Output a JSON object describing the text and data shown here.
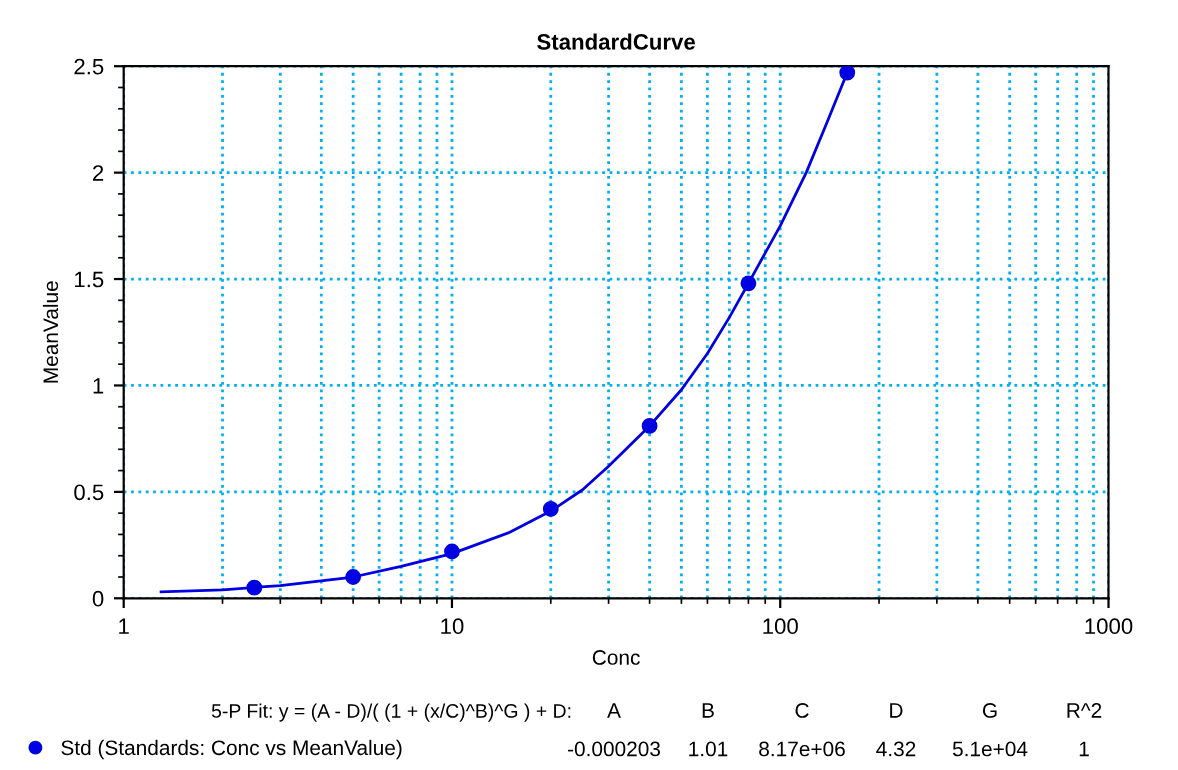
{
  "chart_data": {
    "type": "scatter",
    "title": "StandardCurve",
    "xlabel": "Conc",
    "ylabel": "MeanValue",
    "log": "x",
    "xlim": [
      1,
      1000
    ],
    "xticks": [
      1,
      10,
      100,
      1000
    ],
    "ylim": [
      0,
      2.5
    ],
    "yticks": [
      0,
      0.5,
      1,
      1.5,
      2,
      2.5
    ],
    "grid": true,
    "legend": "bottom",
    "series": [
      {
        "name": "Std (Standards: Conc vs MeanValue)",
        "type": "scatter",
        "color": "#0000e0",
        "marker": "circle",
        "x": [
          2.5,
          5,
          10,
          20,
          40,
          80,
          160
        ],
        "values": [
          0.05,
          0.1,
          0.22,
          0.42,
          0.81,
          1.48,
          2.47
        ]
      },
      {
        "type": "line",
        "color": "#0000e0",
        "marker": "none",
        "line_style": "solid",
        "x": [
          1.3,
          2,
          3,
          5,
          7,
          10,
          15,
          20,
          25,
          30,
          40,
          50,
          60,
          70,
          80,
          100,
          120,
          140,
          160
        ],
        "values": [
          0.03,
          0.04,
          0.06,
          0.1,
          0.15,
          0.21,
          0.31,
          0.41,
          0.51,
          0.62,
          0.81,
          0.98,
          1.15,
          1.32,
          1.48,
          1.75,
          2.0,
          2.25,
          2.47
        ]
      }
    ],
    "annotations": [
      "5-P Fit: y = (A - D)/( (1 + (x/C)^B)^G ) + D:",
      "A",
      "B",
      "C",
      "D",
      "G",
      "R^2",
      "-0.000203",
      "1.01",
      "8.17e+06",
      "4.32",
      "5.1e+04",
      "1"
    ]
  }
}
